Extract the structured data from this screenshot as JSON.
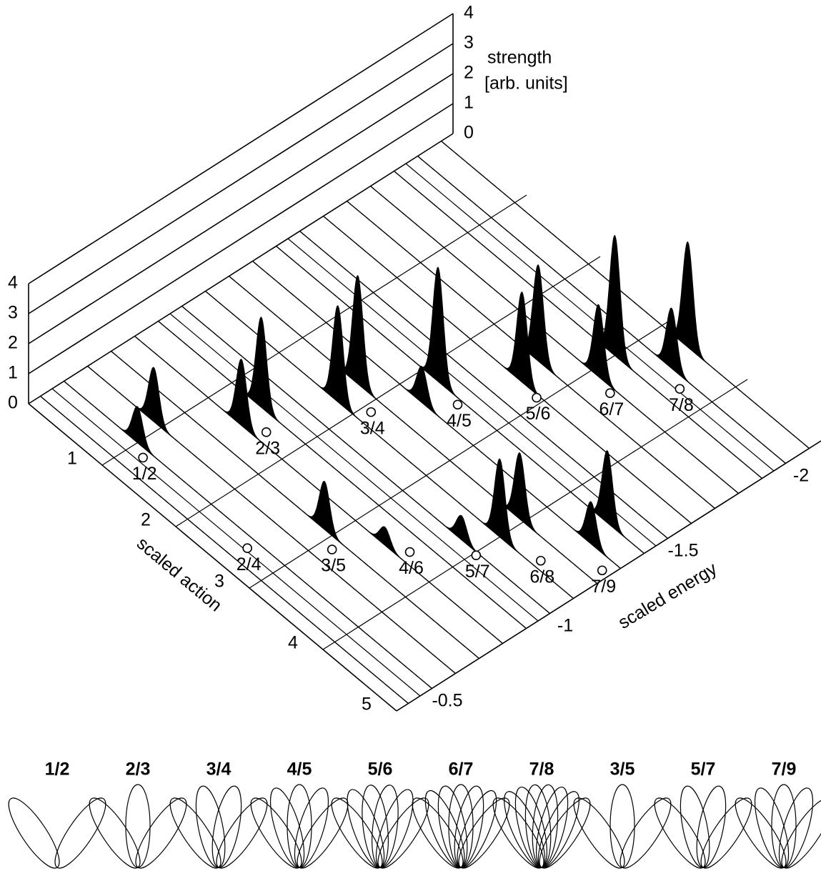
{
  "chart_data": {
    "type": "waterfall3d",
    "xlabel": "scaled action",
    "ylabel": "scaled energy",
    "zlabel": [
      "strength",
      "[arb. units]"
    ],
    "xlim": [
      0,
      5
    ],
    "xticks": [
      1,
      2,
      3,
      4,
      5
    ],
    "ylim": [
      -0.4,
      -2.2
    ],
    "yticks": [
      -0.5,
      -1,
      -1.5,
      -2
    ],
    "zlim": [
      0,
      4
    ],
    "zticks": [
      0,
      1,
      2,
      3,
      4
    ],
    "color": "#000000",
    "traces": [
      -0.45,
      -0.55,
      -0.65,
      -0.75,
      -0.85,
      -0.95,
      -1.05,
      -1.15,
      -1.25,
      -1.35,
      -1.45,
      -1.55,
      -1.65,
      -1.75,
      -1.85,
      -1.95,
      -2.05,
      -2.15
    ],
    "peaks": [
      {
        "energy": -0.55,
        "action": 1.0,
        "height": 1.2
      },
      {
        "energy": -0.65,
        "action": 0.9,
        "height": 1.8
      },
      {
        "energy": -0.85,
        "action": 1.45,
        "height": 2.2
      },
      {
        "energy": -0.95,
        "action": 1.4,
        "height": 3.0
      },
      {
        "energy": -1.15,
        "action": 1.8,
        "height": 3.2
      },
      {
        "energy": -1.25,
        "action": 1.75,
        "height": 3.6
      },
      {
        "energy": -1.35,
        "action": 2.3,
        "height": 1.2
      },
      {
        "energy": -1.45,
        "action": 2.2,
        "height": 3.8
      },
      {
        "energy": -1.65,
        "action": 2.7,
        "height": 3.0
      },
      {
        "energy": -1.75,
        "action": 2.6,
        "height": 3.2
      },
      {
        "energy": -1.85,
        "action": 3.1,
        "height": 2.4
      },
      {
        "energy": -1.95,
        "action": 3.0,
        "height": 4.0
      },
      {
        "energy": -2.05,
        "action": 3.45,
        "height": 2.0
      },
      {
        "energy": -2.15,
        "action": 3.35,
        "height": 3.5
      },
      {
        "energy": -0.75,
        "action": 2.9,
        "height": 1.6
      },
      {
        "energy": -0.85,
        "action": 3.4,
        "height": 0.6
      },
      {
        "energy": -1.05,
        "action": 3.8,
        "height": 0.8
      },
      {
        "energy": -1.15,
        "action": 4.0,
        "height": 2.6
      },
      {
        "energy": -1.25,
        "action": 3.95,
        "height": 2.2
      },
      {
        "energy": -1.35,
        "action": 4.6,
        "height": 1.4
      },
      {
        "energy": -1.45,
        "action": 4.5,
        "height": 2.4
      }
    ],
    "resonances": [
      {
        "label": "1/2",
        "energy": -0.52,
        "action": 1.17
      },
      {
        "label": "2/3",
        "energy": -0.89,
        "action": 1.66
      },
      {
        "label": "3/4",
        "energy": -1.2,
        "action": 2.09
      },
      {
        "label": "4/5",
        "energy": -1.43,
        "action": 2.53
      },
      {
        "label": "5/6",
        "energy": -1.64,
        "action": 2.93
      },
      {
        "label": "6/7",
        "energy": -1.83,
        "action": 3.32
      },
      {
        "label": "7/8",
        "energy": -2.01,
        "action": 3.69
      },
      {
        "label": "2/4",
        "energy": -0.51,
        "action": 2.62
      },
      {
        "label": "3/5",
        "energy": -0.71,
        "action": 3.13
      },
      {
        "label": "4/6",
        "energy": -0.89,
        "action": 3.61
      },
      {
        "label": "5/7",
        "energy": -1.04,
        "action": 4.03
      },
      {
        "label": "6/8",
        "energy": -1.18,
        "action": 4.46
      },
      {
        "label": "7/9",
        "energy": -1.3,
        "action": 4.91
      }
    ],
    "orbits": [
      "1/2",
      "2/3",
      "3/4",
      "4/5",
      "5/6",
      "6/7",
      "7/8",
      "3/5",
      "5/7",
      "7/9"
    ]
  }
}
